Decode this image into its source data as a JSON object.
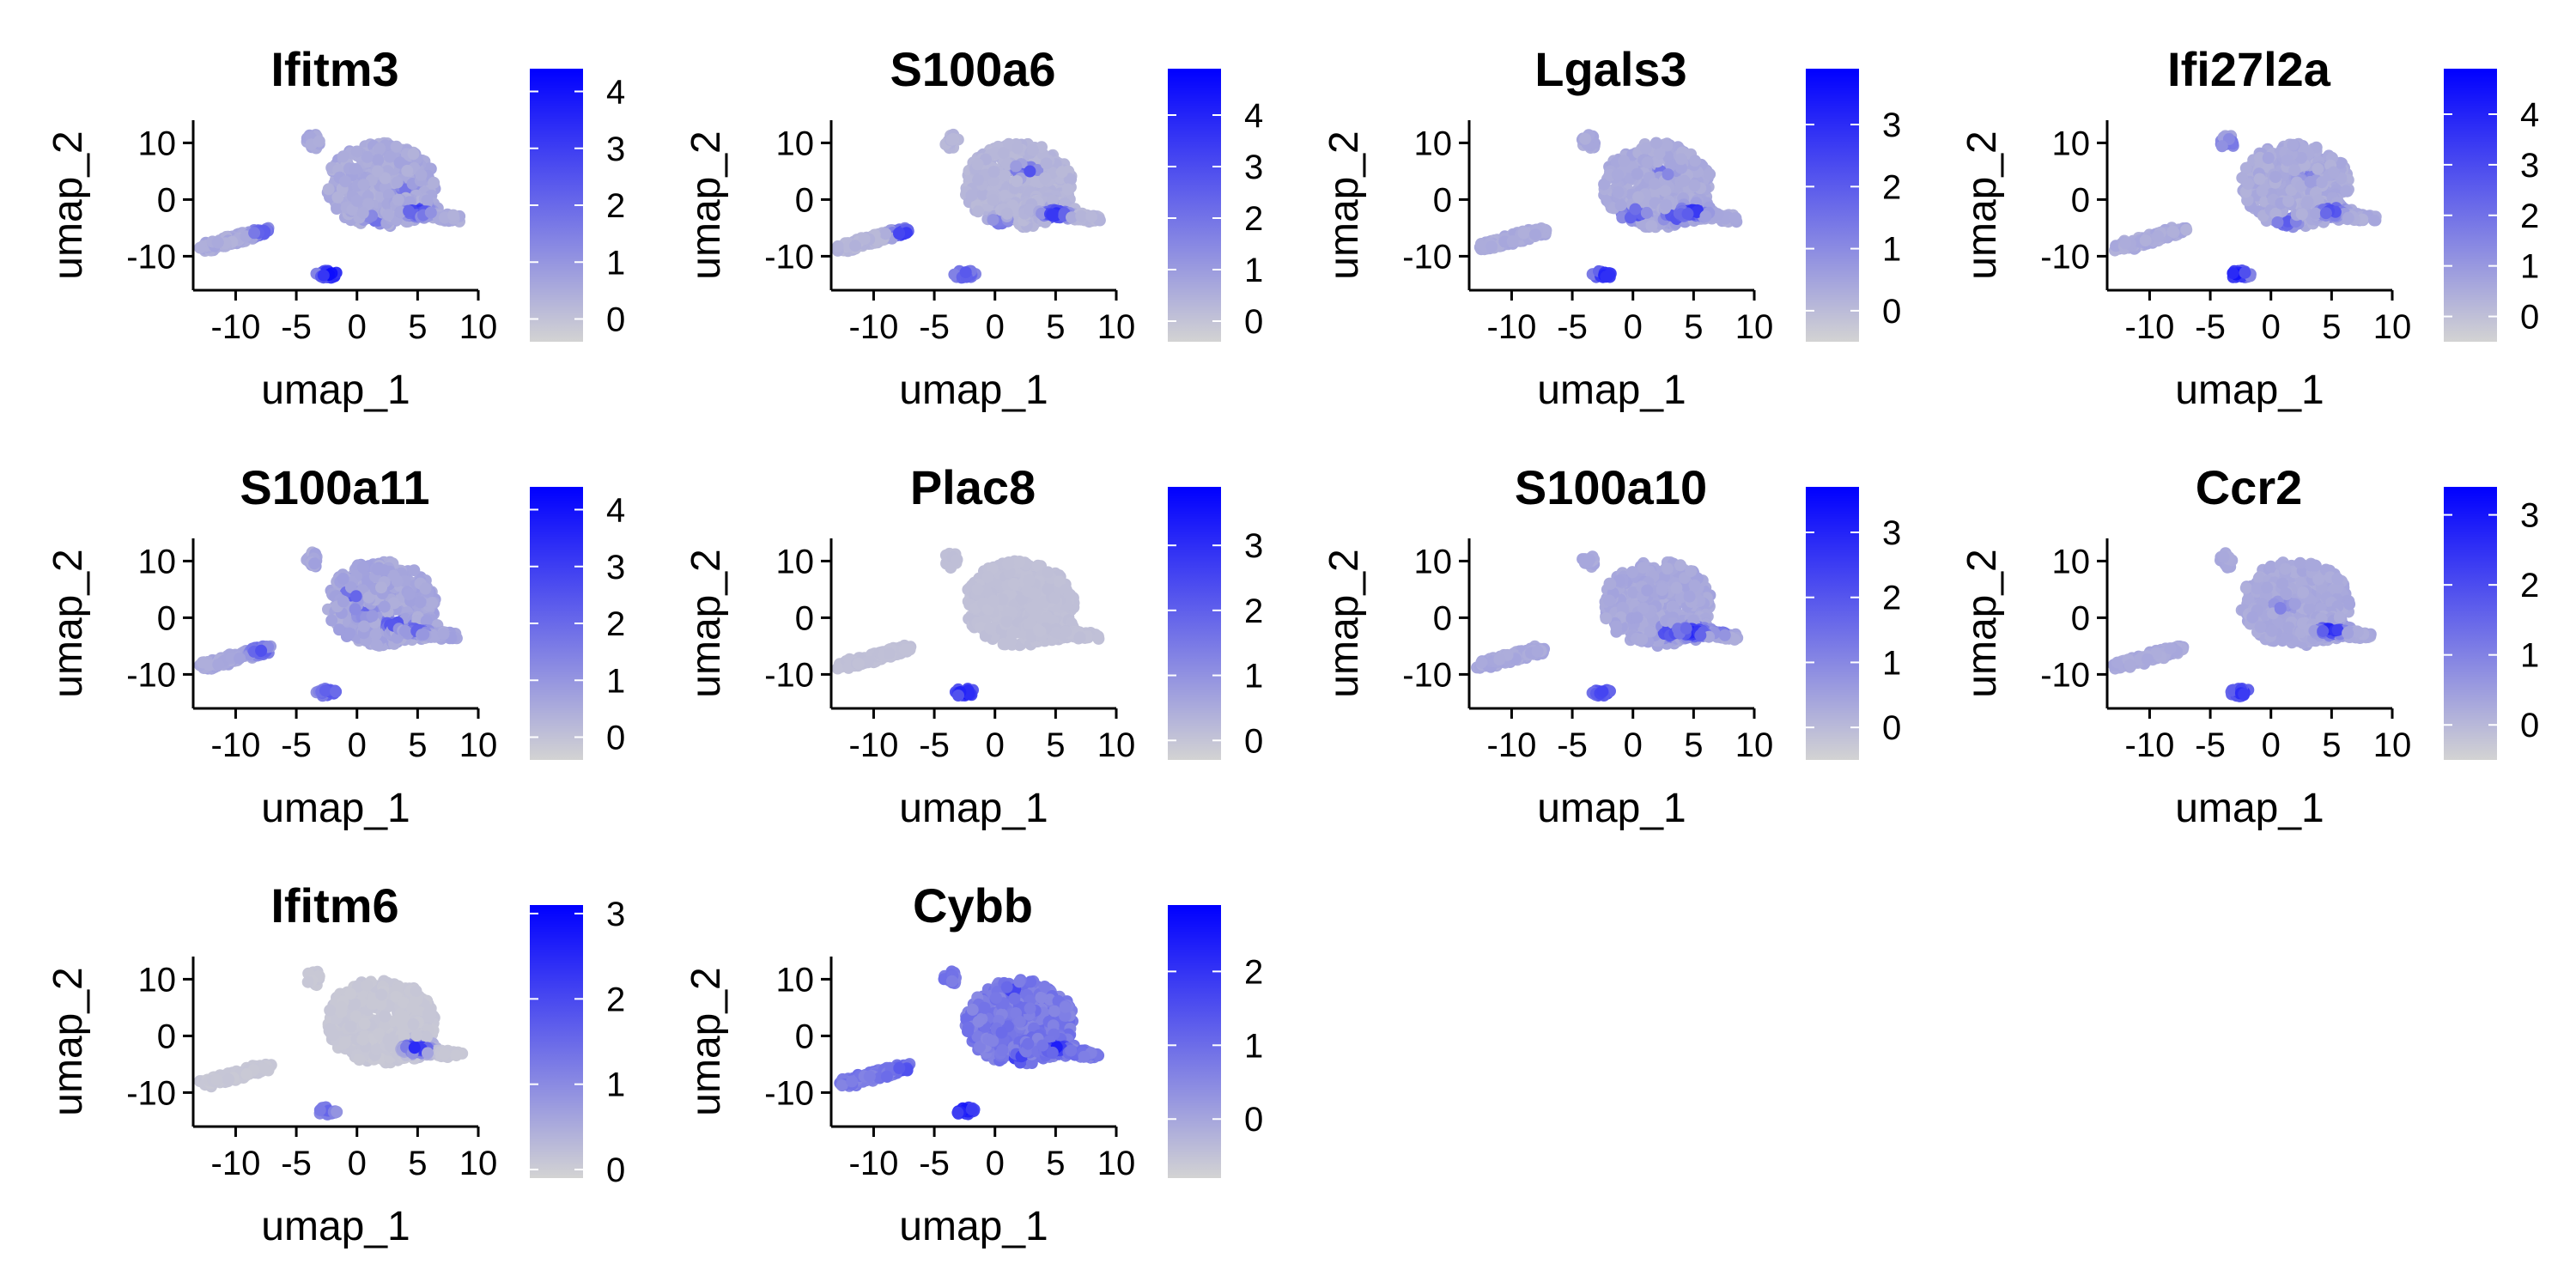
{
  "colors": {
    "low": "#d3d3d3",
    "high": "#0000ff",
    "axis": "#000000"
  },
  "chart_data": [
    {
      "type": "scatter",
      "title": "Ifitm3",
      "xlabel": "umap_1",
      "ylabel": "umap_2",
      "xlim": [
        -13.5,
        10
      ],
      "ylim": [
        -16,
        14
      ],
      "xticks": [
        -10,
        -5,
        0,
        5,
        10
      ],
      "xtick_labels": [
        "-10",
        "-5",
        "0",
        "5",
        "10"
      ],
      "yticks": [
        -10,
        0,
        10
      ],
      "ytick_labels": [
        "-10",
        "0",
        "10"
      ],
      "colorbar": {
        "min": -0.4,
        "max": 4.4,
        "ticks": [
          0,
          1,
          2,
          3,
          4
        ],
        "tick_labels": [
          "0",
          "1",
          "2",
          "3",
          "4"
        ]
      },
      "base_level": 0.6,
      "hotspots": [
        {
          "x": -2.2,
          "y": -13.2,
          "value": 4.2
        },
        {
          "x": 5,
          "y": -2,
          "value": 3.2
        },
        {
          "x": -7.8,
          "y": -5.8,
          "value": 2.4
        },
        {
          "x": 1.5,
          "y": -3.5,
          "value": 2.0
        },
        {
          "x": 4.0,
          "y": 2.0,
          "value": 1.8
        }
      ]
    },
    {
      "type": "scatter",
      "title": "S100a6",
      "xlabel": "umap_1",
      "ylabel": "umap_2",
      "xlim": [
        -13.5,
        10
      ],
      "ylim": [
        -16,
        14
      ],
      "xticks": [
        -10,
        -5,
        0,
        5,
        10
      ],
      "xtick_labels": [
        "-10",
        "-5",
        "0",
        "5",
        "10"
      ],
      "yticks": [
        -10,
        0,
        10
      ],
      "ytick_labels": [
        "-10",
        "0",
        "10"
      ],
      "colorbar": {
        "min": -0.4,
        "max": 4.9,
        "ticks": [
          0,
          1,
          2,
          3,
          4
        ],
        "tick_labels": [
          "0",
          "1",
          "2",
          "3",
          "4"
        ]
      },
      "base_level": 0.4,
      "hotspots": [
        {
          "x": -2.5,
          "y": -13.2,
          "value": 3.0
        },
        {
          "x": -7.5,
          "y": -6,
          "value": 3.6
        },
        {
          "x": 5,
          "y": -2.5,
          "value": 3.8
        },
        {
          "x": 2.5,
          "y": 5,
          "value": 3.2
        },
        {
          "x": 0.5,
          "y": -4,
          "value": 2.0
        }
      ]
    },
    {
      "type": "scatter",
      "title": "Lgals3",
      "xlabel": "umap_1",
      "ylabel": "umap_2",
      "xlim": [
        -13.5,
        10
      ],
      "ylim": [
        -16,
        14
      ],
      "xticks": [
        -10,
        -5,
        0,
        5,
        10
      ],
      "xtick_labels": [
        "-10",
        "-5",
        "0",
        "5",
        "10"
      ],
      "yticks": [
        -10,
        0,
        10
      ],
      "ytick_labels": [
        "-10",
        "0",
        "10"
      ],
      "colorbar": {
        "min": -0.5,
        "max": 3.9,
        "ticks": [
          0,
          1,
          2,
          3
        ],
        "tick_labels": [
          "0",
          "1",
          "2",
          "3"
        ]
      },
      "base_level": 0.4,
      "hotspots": [
        {
          "x": -2.3,
          "y": -13.3,
          "value": 3.2
        },
        {
          "x": 0,
          "y": -2.5,
          "value": 2.8
        },
        {
          "x": 3.5,
          "y": -3,
          "value": 2.4
        },
        {
          "x": 5,
          "y": -2,
          "value": 3.0
        },
        {
          "x": 2.5,
          "y": 5,
          "value": 1.6
        }
      ]
    },
    {
      "type": "scatter",
      "title": "Ifi27l2a",
      "xlabel": "umap_1",
      "ylabel": "umap_2",
      "xlim": [
        -13.5,
        10
      ],
      "ylim": [
        -16,
        14
      ],
      "xticks": [
        -10,
        -5,
        0,
        5,
        10
      ],
      "xtick_labels": [
        "-10",
        "-5",
        "0",
        "5",
        "10"
      ],
      "yticks": [
        -10,
        0,
        10
      ],
      "ytick_labels": [
        "-10",
        "0",
        "10"
      ],
      "colorbar": {
        "min": -0.5,
        "max": 4.9,
        "ticks": [
          0,
          1,
          2,
          3,
          4
        ],
        "tick_labels": [
          "0",
          "1",
          "2",
          "3",
          "4"
        ]
      },
      "base_level": 0.6,
      "hotspots": [
        {
          "x": -2.8,
          "y": -13.2,
          "value": 4.4
        },
        {
          "x": 5,
          "y": -2,
          "value": 3.0
        },
        {
          "x": 1.3,
          "y": -4,
          "value": 2.6
        },
        {
          "x": -3.5,
          "y": 10,
          "value": 2.0
        },
        {
          "x": 3,
          "y": 4,
          "value": 1.8
        }
      ]
    },
    {
      "type": "scatter",
      "title": "S100a11",
      "xlabel": "umap_1",
      "ylabel": "umap_2",
      "xlim": [
        -13.5,
        10
      ],
      "ylim": [
        -16,
        14
      ],
      "xticks": [
        -10,
        -5,
        0,
        5,
        10
      ],
      "xtick_labels": [
        "-10",
        "-5",
        "0",
        "5",
        "10"
      ],
      "yticks": [
        -10,
        0,
        10
      ],
      "ytick_labels": [
        "-10",
        "0",
        "10"
      ],
      "colorbar": {
        "min": -0.4,
        "max": 4.4,
        "ticks": [
          0,
          1,
          2,
          3,
          4
        ],
        "tick_labels": [
          "0",
          "1",
          "2",
          "3",
          "4"
        ]
      },
      "base_level": 0.7,
      "hotspots": [
        {
          "x": -2.3,
          "y": -13.2,
          "value": 2.6
        },
        {
          "x": -8,
          "y": -5.8,
          "value": 2.6
        },
        {
          "x": 3,
          "y": -1,
          "value": 2.8
        },
        {
          "x": 5,
          "y": -2,
          "value": 2.4
        },
        {
          "x": 0.5,
          "y": 1,
          "value": 2.2
        },
        {
          "x": -0.5,
          "y": 4,
          "value": 2.5
        }
      ]
    },
    {
      "type": "scatter",
      "title": "Plac8",
      "xlabel": "umap_1",
      "ylabel": "umap_2",
      "xlim": [
        -13.5,
        10
      ],
      "ylim": [
        -16,
        14
      ],
      "xticks": [
        -10,
        -5,
        0,
        5,
        10
      ],
      "xtick_labels": [
        "-10",
        "-5",
        "0",
        "5",
        "10"
      ],
      "yticks": [
        -10,
        0,
        10
      ],
      "ytick_labels": [
        "-10",
        "0",
        "10"
      ],
      "colorbar": {
        "min": -0.3,
        "max": 3.9,
        "ticks": [
          0,
          1,
          2,
          3
        ],
        "tick_labels": [
          "0",
          "1",
          "2",
          "3"
        ]
      },
      "base_level": 0.1,
      "hotspots": [
        {
          "x": -2.5,
          "y": -13.2,
          "value": 3.6
        }
      ]
    },
    {
      "type": "scatter",
      "title": "S100a10",
      "xlabel": "umap_1",
      "ylabel": "umap_2",
      "xlim": [
        -13.5,
        10
      ],
      "ylim": [
        -16,
        14
      ],
      "xticks": [
        -10,
        -5,
        0,
        5,
        10
      ],
      "xtick_labels": [
        "-10",
        "-5",
        "0",
        "5",
        "10"
      ],
      "yticks": [
        -10,
        0,
        10
      ],
      "ytick_labels": [
        "-10",
        "0",
        "10"
      ],
      "colorbar": {
        "min": -0.5,
        "max": 3.7,
        "ticks": [
          0,
          1,
          2,
          3
        ],
        "tick_labels": [
          "0",
          "1",
          "2",
          "3"
        ]
      },
      "base_level": 0.4,
      "hotspots": [
        {
          "x": -2.5,
          "y": -13.2,
          "value": 2.4
        },
        {
          "x": 5,
          "y": -2.5,
          "value": 3.0
        },
        {
          "x": 3,
          "y": -2.5,
          "value": 2.6
        },
        {
          "x": 7.5,
          "y": -2,
          "value": 2.0
        }
      ]
    },
    {
      "type": "scatter",
      "title": "Ccr2",
      "xlabel": "umap_1",
      "ylabel": "umap_2",
      "xlim": [
        -13.5,
        10
      ],
      "ylim": [
        -16,
        14
      ],
      "xticks": [
        -10,
        -5,
        0,
        5,
        10
      ],
      "xtick_labels": [
        "-10",
        "-5",
        "0",
        "5",
        "10"
      ],
      "yticks": [
        -10,
        0,
        10
      ],
      "ytick_labels": [
        "-10",
        "0",
        "10"
      ],
      "colorbar": {
        "min": -0.5,
        "max": 3.4,
        "ticks": [
          0,
          1,
          2,
          3
        ],
        "tick_labels": [
          "0",
          "1",
          "2",
          "3"
        ]
      },
      "base_level": 0.3,
      "hotspots": [
        {
          "x": -2.5,
          "y": -13.2,
          "value": 2.6
        },
        {
          "x": 5,
          "y": -2,
          "value": 2.8
        },
        {
          "x": 1,
          "y": 2,
          "value": 1.2
        }
      ]
    },
    {
      "type": "scatter",
      "title": "Ifitm6",
      "xlabel": "umap_1",
      "ylabel": "umap_2",
      "xlim": [
        -13.5,
        10
      ],
      "ylim": [
        -16,
        14
      ],
      "xticks": [
        -10,
        -5,
        0,
        5,
        10
      ],
      "xtick_labels": [
        "-10",
        "-5",
        "0",
        "5",
        "10"
      ],
      "yticks": [
        -10,
        0,
        10
      ],
      "ytick_labels": [
        "-10",
        "0",
        "10"
      ],
      "colorbar": {
        "min": -0.1,
        "max": 3.1,
        "ticks": [
          0,
          1,
          2,
          3
        ],
        "tick_labels": [
          "0",
          "1",
          "2",
          "3"
        ]
      },
      "base_level": 0.1,
      "hotspots": [
        {
          "x": -2.5,
          "y": -13.2,
          "value": 1.6
        },
        {
          "x": 5,
          "y": -2,
          "value": 2.6
        }
      ]
    },
    {
      "type": "scatter",
      "title": "Cybb",
      "xlabel": "umap_1",
      "ylabel": "umap_2",
      "xlim": [
        -13.5,
        10
      ],
      "ylim": [
        -16,
        14
      ],
      "xticks": [
        -10,
        -5,
        0,
        5,
        10
      ],
      "xtick_labels": [
        "-10",
        "-5",
        "0",
        "5",
        "10"
      ],
      "yticks": [
        -10,
        0,
        10
      ],
      "ytick_labels": [
        "-10",
        "0",
        "10"
      ],
      "colorbar": {
        "min": -0.8,
        "max": 2.9,
        "ticks": [
          0,
          1,
          2
        ],
        "tick_labels": [
          "0",
          "1",
          "2"
        ]
      },
      "base_level": 0.9,
      "hotspots": [
        {
          "x": -2.5,
          "y": -13.2,
          "value": 2.6
        },
        {
          "x": 2,
          "y": -4,
          "value": 2.0
        },
        {
          "x": 5,
          "y": -2,
          "value": 2.4
        },
        {
          "x": 1.5,
          "y": 8,
          "value": 1.8
        },
        {
          "x": -7.5,
          "y": -6,
          "value": 1.6
        }
      ]
    }
  ]
}
